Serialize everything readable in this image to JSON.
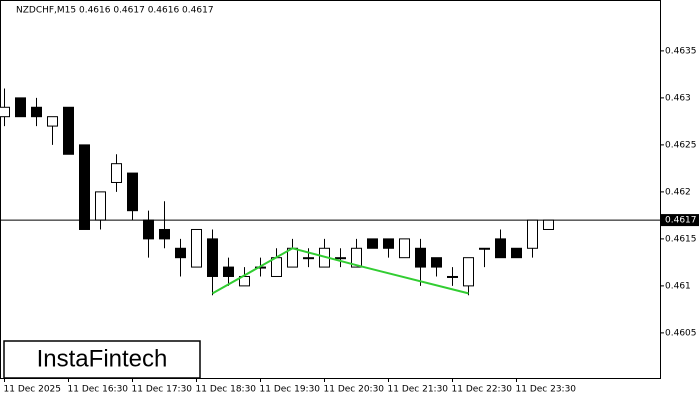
{
  "chart_data": {
    "type": "candlestick",
    "title": "NZDCHF,M15  0.4616 0.4617 0.4616 0.4617",
    "categories": [
      "11 Dec 2025",
      null,
      null,
      null,
      "11 Dec 16:30",
      null,
      null,
      null,
      "11 Dec 17:30",
      null,
      null,
      null,
      "11 Dec 18:30",
      null,
      null,
      null,
      "11 Dec 19:30",
      null,
      null,
      null,
      "11 Dec 20:30",
      null,
      null,
      null,
      "11 Dec 21:30",
      null,
      null,
      null,
      "11 Dec 22:30",
      null,
      null,
      null,
      "11 Dec 23:30",
      null,
      null
    ],
    "open": [
      0.4628,
      0.463,
      0.4629,
      0.4627,
      0.4629,
      0.4625,
      0.4617,
      0.4621,
      0.4622,
      0.4617,
      0.4616,
      0.4614,
      0.4612,
      0.4615,
      0.4612,
      0.461,
      0.4612,
      0.4611,
      0.4612,
      0.4613,
      0.4612,
      0.4613,
      0.4612,
      0.4615,
      0.4615,
      0.4613,
      0.4614,
      0.4613,
      0.4611,
      0.461,
      0.4614,
      0.4615,
      0.4614,
      0.4614,
      0.4616
    ],
    "high": [
      0.4631,
      0.463,
      0.463,
      0.4628,
      0.4629,
      0.4625,
      0.462,
      0.4624,
      0.4622,
      0.4618,
      0.4619,
      0.4615,
      0.4616,
      0.4616,
      0.4613,
      0.4612,
      0.4613,
      0.4614,
      0.4615,
      0.4614,
      0.4615,
      0.4614,
      0.4615,
      0.4615,
      0.4615,
      0.4615,
      0.4615,
      0.4613,
      0.4612,
      0.4613,
      0.4614,
      0.4616,
      0.4614,
      0.4617,
      0.4617
    ],
    "low": [
      0.4627,
      0.4628,
      0.4627,
      0.4625,
      0.4624,
      0.4616,
      0.4616,
      0.462,
      0.4617,
      0.4613,
      0.4614,
      0.4611,
      0.4612,
      0.4609,
      0.461,
      0.461,
      0.4611,
      0.4611,
      0.4612,
      0.4612,
      0.4612,
      0.4612,
      0.4612,
      0.4614,
      0.4613,
      0.4613,
      0.461,
      0.4611,
      0.461,
      0.4609,
      0.4612,
      0.4613,
      0.4613,
      0.4613,
      0.4616
    ],
    "close": [
      0.4629,
      0.4628,
      0.4628,
      0.4628,
      0.4624,
      0.4616,
      0.462,
      0.4623,
      0.4618,
      0.4615,
      0.4615,
      0.4613,
      0.4616,
      0.4611,
      0.4611,
      0.4611,
      0.4612,
      0.4613,
      0.4614,
      0.4613,
      0.4614,
      0.4613,
      0.4614,
      0.4614,
      0.4614,
      0.4615,
      0.4612,
      0.4612,
      0.4611,
      0.4613,
      0.4614,
      0.4613,
      0.4613,
      0.4617,
      0.4617
    ],
    "ylim": [
      0.46002,
      0.46402
    ],
    "yticks": [
      0.4605,
      0.461,
      0.4615,
      0.462,
      0.4625,
      0.463,
      0.4635
    ],
    "last_price": 0.4617,
    "pattern": {
      "color": "#32cd32",
      "x": [
        13,
        18,
        22,
        29
      ],
      "values": [
        0.46092,
        0.4614,
        0.46122,
        0.46092
      ]
    },
    "watermark": "InstaFintech"
  }
}
